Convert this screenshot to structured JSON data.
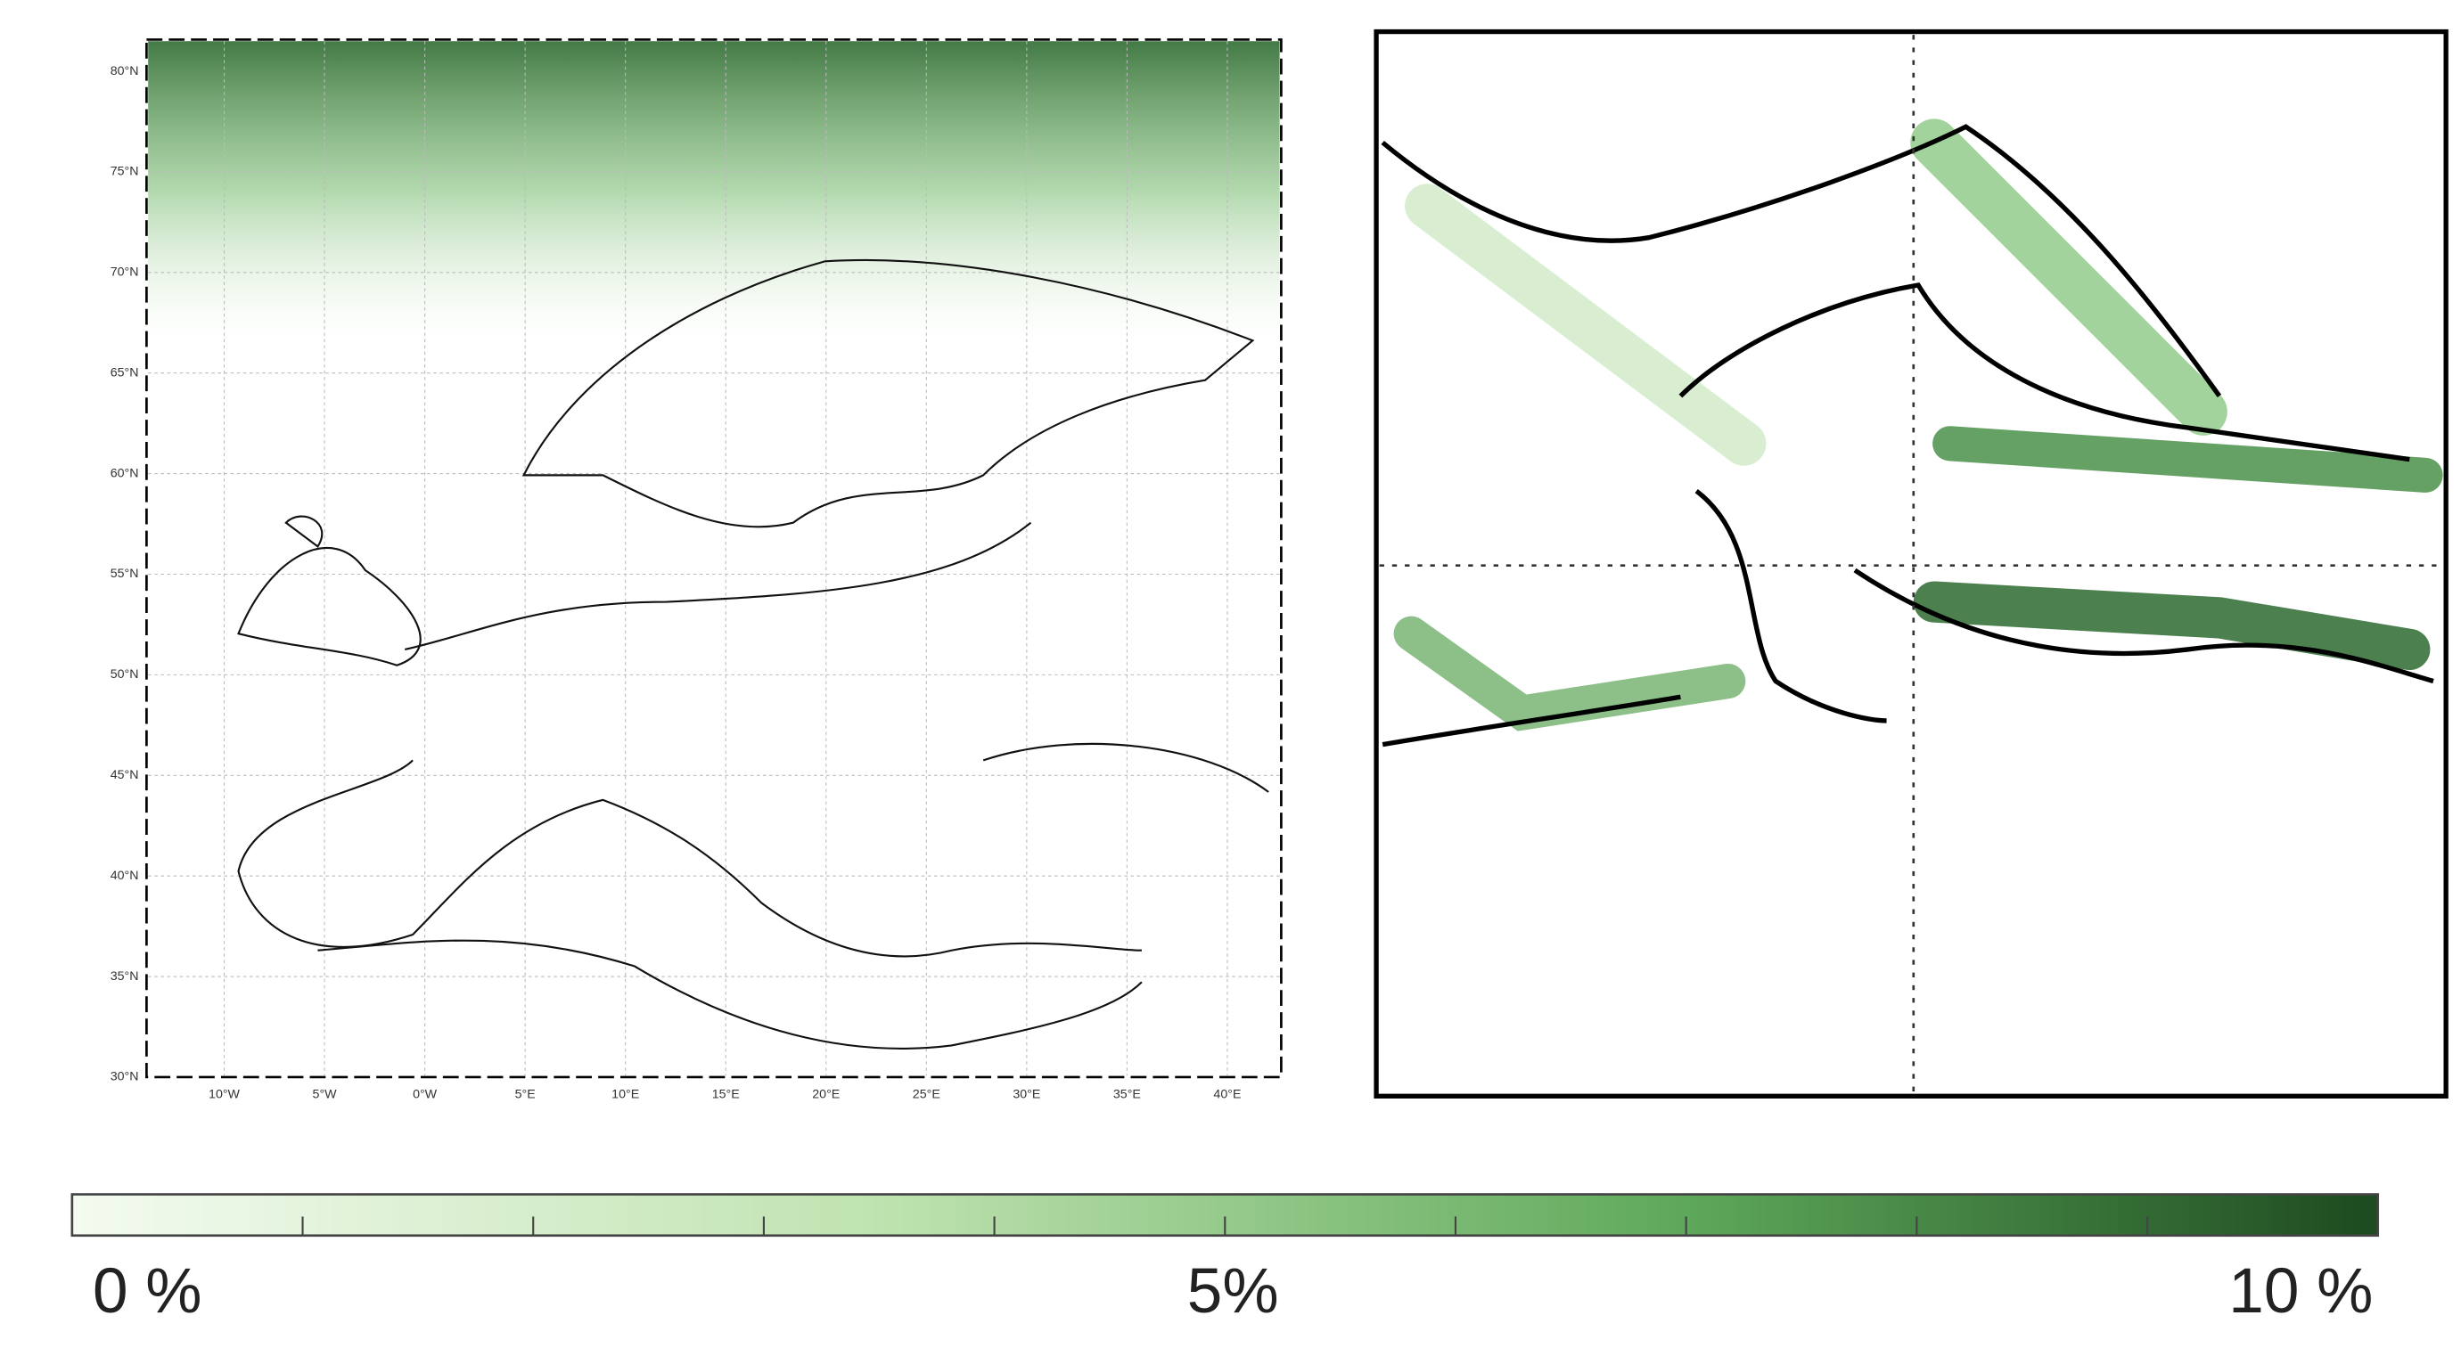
{
  "map": {
    "lat_labels": [
      "80°N",
      "75°N",
      "70°N",
      "65°N",
      "60°N",
      "55°N",
      "50°N",
      "45°N",
      "40°N",
      "35°N",
      "30°N"
    ],
    "lon_labels": [
      "10°W",
      "5°W",
      "0°W",
      "5°E",
      "10°E",
      "15°E",
      "20°E",
      "25°E",
      "30°E",
      "35°E",
      "40°E"
    ]
  },
  "colorbar": {
    "labels": [
      "0 %",
      "5%",
      "10 %"
    ]
  }
}
